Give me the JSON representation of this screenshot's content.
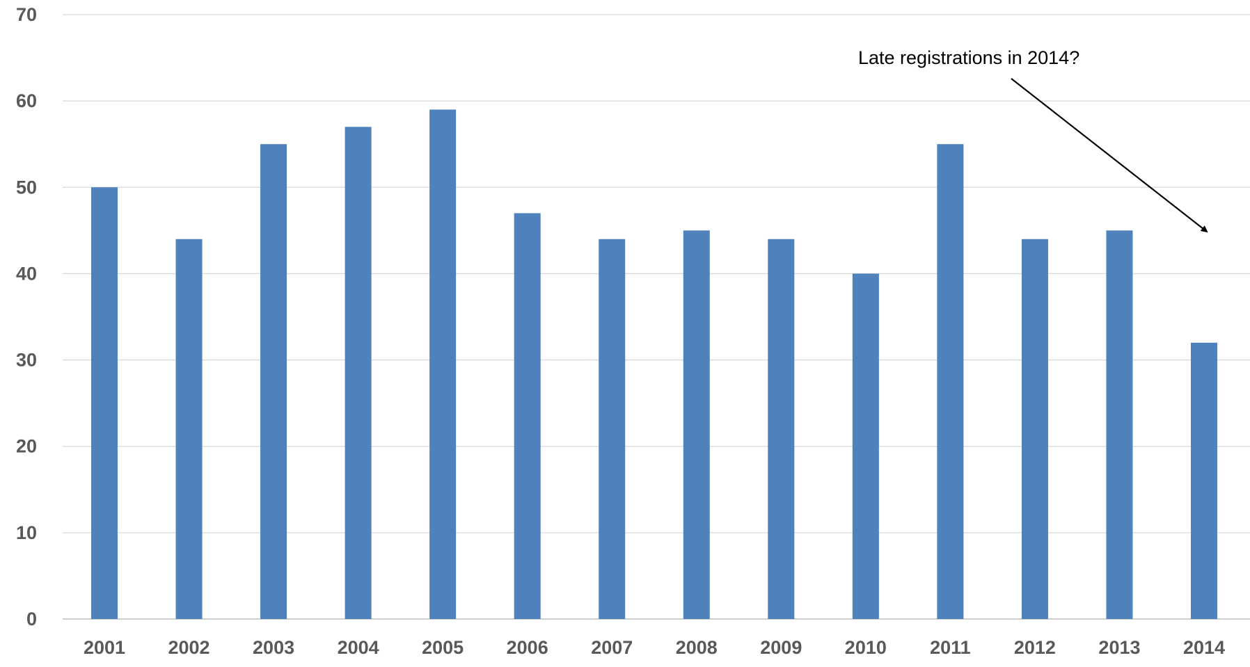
{
  "chart_data": {
    "type": "bar",
    "title": "",
    "xlabel": "",
    "ylabel": "",
    "categories": [
      "2001",
      "2002",
      "2003",
      "2004",
      "2005",
      "2006",
      "2007",
      "2008",
      "2009",
      "2010",
      "2011",
      "2012",
      "2013",
      "2014"
    ],
    "values": [
      50,
      44,
      55,
      57,
      59,
      47,
      44,
      45,
      44,
      40,
      55,
      44,
      45,
      32
    ],
    "ylim": [
      0,
      70
    ],
    "yticks": [
      "0",
      "10",
      "20",
      "30",
      "40",
      "50",
      "60",
      "70"
    ],
    "grid": true,
    "legend": "none",
    "bar_color": "#4f81bd",
    "annotation": {
      "text": "Late registrations in 2014?",
      "points_to": "2014"
    }
  }
}
